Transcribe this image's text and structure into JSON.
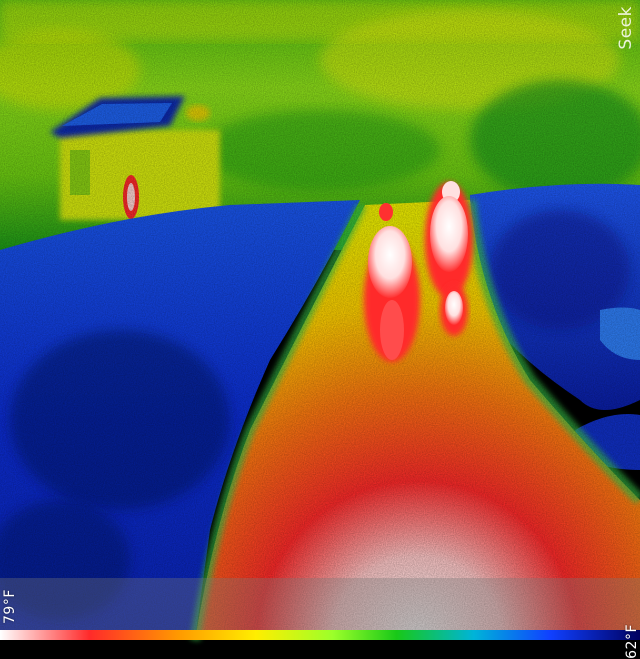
{
  "thermal_camera": {
    "brand": "Seek",
    "temperature_scale": {
      "max": "79°F",
      "min": "62°F"
    },
    "palette": "tyrian",
    "colors": {
      "cold": "#0a2bd6",
      "cool": "#00b4d8",
      "mid": "#6ed400",
      "warm": "#ffe800",
      "hot": "#ff2020",
      "hottest": "#ffffff"
    },
    "scene_subjects": [
      "person-left",
      "person-right",
      "child",
      "house",
      "road"
    ]
  }
}
